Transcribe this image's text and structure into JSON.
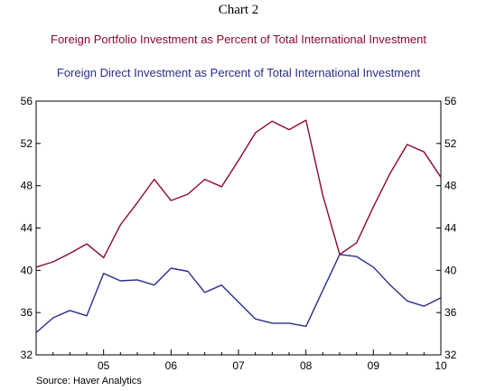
{
  "chart_data": {
    "type": "line",
    "title": "Chart 2",
    "source": "Source: Haver Analytics",
    "x": [
      "2004Q1",
      "2004Q2",
      "2004Q3",
      "2004Q4",
      "2005Q1",
      "2005Q2",
      "2005Q3",
      "2005Q4",
      "2006Q1",
      "2006Q2",
      "2006Q3",
      "2006Q4",
      "2007Q1",
      "2007Q2",
      "2007Q3",
      "2007Q4",
      "2008Q1",
      "2008Q2",
      "2008Q3",
      "2008Q4",
      "2009Q1",
      "2009Q2",
      "2009Q3",
      "2009Q4",
      "2010Q1"
    ],
    "x_tick_labels": [
      "05",
      "06",
      "07",
      "08",
      "09",
      "10"
    ],
    "y_tick_labels": [
      "32",
      "36",
      "40",
      "44",
      "48",
      "52",
      "56"
    ],
    "ylim": [
      32,
      56
    ],
    "y_ticks": [
      32,
      36,
      40,
      44,
      48,
      52,
      56
    ],
    "grid": false,
    "dual_axis_labels": true,
    "series": [
      {
        "name": "Foreign Portfolio Investment as Percent of Total International Investment",
        "color": "#8b0a2b",
        "values": [
          40.3,
          40.8,
          41.6,
          42.5,
          41.2,
          44.3,
          46.4,
          48.6,
          46.6,
          47.2,
          48.6,
          47.9,
          50.4,
          53.0,
          54.1,
          53.3,
          54.2,
          47.1,
          41.5,
          42.6,
          46.0,
          49.2,
          51.9,
          51.2,
          48.8
        ]
      },
      {
        "name": "Foreign Direct Investment as Percent of Total International Investment",
        "color": "#2b2b8f",
        "values": [
          34.1,
          35.5,
          36.2,
          35.7,
          39.7,
          39.0,
          39.1,
          38.6,
          40.2,
          39.9,
          37.9,
          38.6,
          37.0,
          35.4,
          35.0,
          35.0,
          34.7,
          38.1,
          41.5,
          41.3,
          40.3,
          38.6,
          37.1,
          36.6,
          37.4
        ]
      }
    ]
  }
}
